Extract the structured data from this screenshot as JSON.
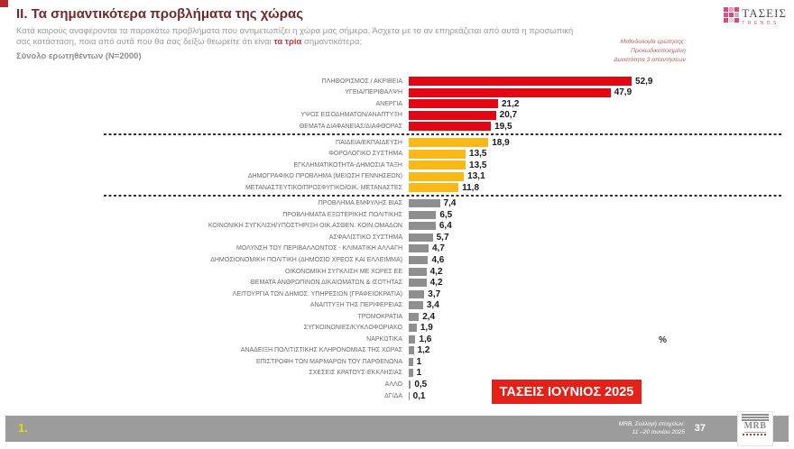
{
  "header": {
    "title": "II. Τα σημαντικότερα προβλήματα της χώρας",
    "intro_part1": "Κατά καιρούς αναφέρονται τα παρακάτω προβλήματα που αντιμετωπίζει η χώρα μας σήμερα, Άσχετα με το αν επηρεάζεται από αυτά η προσωπική σας κατάσταση, ποια από αυτά που θα σας δείξω θεωρείτε ότι είναι ",
    "intro_highlight": "τα τρία",
    "intro_part2": " σημαντικότερα;",
    "sample_line": "Σύνολο ερωτηθέντων (Ν=2000)",
    "methodology": [
      "Μεθοδολογία ερώτησης:",
      "Προκωδικοποιημένη",
      "Δυνατότητα 3 απαντήσεων"
    ],
    "title_color": "#73282d"
  },
  "logo": {
    "name": "ΤΑΣΕΙΣ",
    "subtitle": "TRENDS",
    "accent_color": "#d6497e"
  },
  "chart_data": {
    "type": "bar",
    "orientation": "horizontal",
    "unit": "%",
    "xlim": [
      0,
      55
    ],
    "grid": false,
    "legend": false,
    "categories": [
      "ΠΛΗΘΩΡΙΣΜΟΣ / ΑΚΡΙΒΕΙΑ",
      "ΥΓΕΙΑ/ΠΕΡΙΘΑΛΨΗ",
      "ΑΝΕΡΓΙΑ",
      "ΥΨΟΣ ΕΙΣΟΔΗΜΑΤΩΝ/ΑΝΑΠΤΥΞΗ",
      "ΘΕΜΑΤΑ ΔΙΑΦΑΝΕΙΑΣ/ΔΙΑΦΘΟΡΑΣ",
      "ΠΑΙΔΕΙΑ/ΕΚΠΑΙΔΕΥΣΗ",
      "ΦΟΡΟΛΟΓΙΚΟ ΣΥΣΤΗΜΑ",
      "ΕΓΚΛΗΜΑΤΙΚΟΤΗΤΑ-ΔΗΜΟΣΙΑ ΤΑΞΗ",
      "ΔΗΜΟΓΡΑΦΙΚΟ ΠΡΟΒΛΗΜΑ (ΜΕΙΩΣΗ ΓΕΝΝΗΣΕΩΝ)",
      "ΜΕΤΑΝΑΣΤΕΥΤΙΚΟ/ΠΡΟΣΦΥΓΙΚΟ/ΟΙΚ. ΜΕΤΑΝΑΣΤΕΣ",
      "ΠΡΟΒΛΗΜΑ ΕΜΦΥΛΗΣ ΒΙΑΣ",
      "ΠΡΟΒΛΗΜΑΤΑ ΕΞΩΤΕΡΙΚΗΣ ΠΟΛΙΤΙΚΗΣ",
      "ΚΟΙΝΩΝΙΚΗ ΣΥΓΚΛΙΣΗ/ΥΠΟΣΤΗΡΙΞΗ ΟΙΚ.ΑΣΘΕΝ. ΚΟΙΝ.ΟΜΑΔΩΝ",
      "ΑΣΦΑΛΙΣΤΙΚΟ ΣΥΣΤΗΜΑ",
      "ΜΟΛΥΝΣΗ ΤΟΥ ΠΕΡΙΒΑΛΛΟΝΤΟΣ - ΚΛΙΜΑΤΙΚΗ ΑΛΛΑΓΗ",
      "ΔΗΜΟΣΙΟΝΟΜΙΚΗ ΠΟΛΙΤΙΚΗ (ΔΗΜΟΣΙΟ ΧΡΕΟΣ ΚΑΙ ΕΛΛΕΙΜΜΑ)",
      "ΟΙΚΟΝΟΜΙΚΗ ΣΥΓΚΛΙΣΗ ΜΕ ΧΩΡΕΣ ΕΕ",
      "ΘΕΜΑΤΑ ΑΝΘΡΩΠΙΝΩΝ ΔΙΚΑΙΩΜΑΤΩΝ & ΙΣΟΤΗΤΑΣ",
      "ΛΕΙΤΟΥΡΓΙΑ ΤΩΝ ΔΗΜΟΣ. ΥΠΗΡΕΣΙΩΝ (ΓΡΑΦΕΙΟΚΡΑΤΙΑ)",
      "ΑΝΑΠΤΥΞΗ ΤΗΣ ΠΕΡΙΦΕΡΕΙΑΣ",
      "ΤΡΟΜΟΚΡΑΤΙΑ",
      "ΣΥΓΚΟΙΝΩΝΙΕΣ/ΚΥΚΛΟΦΟΡΙΑΚΟ",
      "ΝΑΡΚΩΤΙΚΑ",
      "ΑΝΑΔΕΙΞΗ ΠΟΛΙΤΙΣΤΙΚΗΣ ΚΛΗΡΟΝΟΜΙΑΣ ΤΗΣ ΧΩΡΑΣ",
      "ΕΠΙΣΤΡΟΦΗ ΤΩΝ ΜΑΡΜΑΡΩΝ ΤΟΥ ΠΑΡΘΕΝΩΝΑ",
      "ΣΧΕΣΕΙΣ ΚΡΑΤΟΥΣ-ΕΚΚΛΗΣΙΑΣ",
      "ΑΛΛΟ",
      "ΔΓ/ΔΑ"
    ],
    "values": [
      52.9,
      47.9,
      21.2,
      20.7,
      19.5,
      18.9,
      13.5,
      13.5,
      13.1,
      11.8,
      7.4,
      6.5,
      6.4,
      5.7,
      4.7,
      4.6,
      4.2,
      4.2,
      3.7,
      3.4,
      2.4,
      1.9,
      1.6,
      1.2,
      1,
      1,
      0.5,
      0.1
    ],
    "display_values": [
      "52,9",
      "47,9",
      "21,2",
      "20,7",
      "19,5",
      "18,9",
      "13,5",
      "13,5",
      "13,1",
      "11,8",
      "7,4",
      "6,5",
      "6,4",
      "5,7",
      "4,7",
      "4,6",
      "4,2",
      "4,2",
      "3,7",
      "3,4",
      "2,4",
      "1,9",
      "1,6",
      "1,2",
      "1",
      "1",
      "0,5",
      "0,1"
    ],
    "groups": [
      "red",
      "red",
      "red",
      "red",
      "red",
      "yellow",
      "yellow",
      "yellow",
      "yellow",
      "yellow",
      "gray",
      "gray",
      "gray",
      "gray",
      "gray",
      "gray",
      "gray",
      "gray",
      "gray",
      "gray",
      "gray",
      "gray",
      "gray",
      "gray",
      "gray",
      "gray",
      "gray",
      "gray"
    ],
    "colors": {
      "red": "#e30613",
      "yellow": "#fbb917",
      "gray": "#8f8f8f"
    },
    "separators_after": [
      4,
      9
    ],
    "axis_symbol": "%"
  },
  "badge": {
    "label": "ΤΑΣΕΙΣ ΙΟΥΝΙΟΣ 2025",
    "bg": "#e32119"
  },
  "footer": {
    "page_marker": "1.",
    "source_line1": "MRB, Συλλογή στοιχείων:",
    "source_line2": "11 –20 Ιουνίου 2025",
    "page_number": "37",
    "mrb_logo": "MRB"
  }
}
